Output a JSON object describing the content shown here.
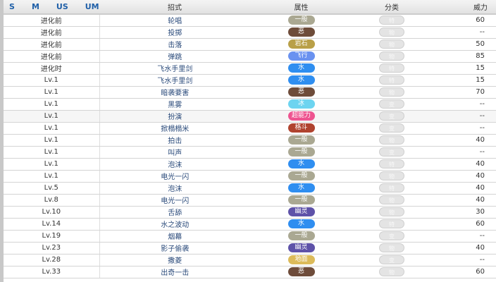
{
  "header": {
    "games": [
      "S",
      "M",
      "US",
      "UM"
    ],
    "move": "招式",
    "type": "属性",
    "category": "分类",
    "power": "威力"
  },
  "type_colors": {
    "一般": "#aaa892",
    "恶": "#6e4c3a",
    "岩石": "#b9a048",
    "飞行": "#6a92f0",
    "水": "#2f8ef0",
    "冰": "#6dd4f0",
    "超能力": "#ee5490",
    "格斗": "#b0432f",
    "幽灵": "#5e52a8",
    "地面": "#dcbb5a"
  },
  "rows": [
    {
      "level": "进化前",
      "move": "轮唱",
      "type": "一般",
      "category": "特",
      "power": "60"
    },
    {
      "level": "进化前",
      "move": "投掷",
      "type": "恶",
      "category": "物",
      "power": "--"
    },
    {
      "level": "进化前",
      "move": "击落",
      "type": "岩石",
      "category": "物",
      "power": "50"
    },
    {
      "level": "进化前",
      "move": "弹跳",
      "type": "飞行",
      "category": "物",
      "power": "85"
    },
    {
      "level": "进化时",
      "move": "飞水手里剑",
      "type": "水",
      "category": "特",
      "power": "15"
    },
    {
      "level": "Lv.1",
      "move": "飞水手里剑",
      "type": "水",
      "category": "特",
      "power": "15"
    },
    {
      "level": "Lv.1",
      "move": "暗袭要害",
      "type": "恶",
      "category": "物",
      "power": "70"
    },
    {
      "level": "Lv.1",
      "move": "黑雾",
      "type": "冰",
      "category": "变",
      "power": "--"
    },
    {
      "level": "Lv.1",
      "move": "扮演",
      "type": "超能力",
      "category": "变",
      "power": "--"
    },
    {
      "level": "Lv.1",
      "move": "掀榻榻米",
      "type": "格斗",
      "category": "变",
      "power": "--"
    },
    {
      "level": "Lv.1",
      "move": "拍击",
      "type": "一般",
      "category": "物",
      "power": "40"
    },
    {
      "level": "Lv.1",
      "move": "叫声",
      "type": "一般",
      "category": "变",
      "power": "--"
    },
    {
      "level": "Lv.1",
      "move": "泡沫",
      "type": "水",
      "category": "特",
      "power": "40"
    },
    {
      "level": "Lv.1",
      "move": "电光一闪",
      "type": "一般",
      "category": "物",
      "power": "40"
    },
    {
      "level": "Lv.5",
      "move": "泡沫",
      "type": "水",
      "category": "特",
      "power": "40"
    },
    {
      "level": "Lv.8",
      "move": "电光一闪",
      "type": "一般",
      "category": "物",
      "power": "40"
    },
    {
      "level": "Lv.10",
      "move": "舌舔",
      "type": "幽灵",
      "category": "物",
      "power": "30"
    },
    {
      "level": "Lv.14",
      "move": "水之波动",
      "type": "水",
      "category": "特",
      "power": "60"
    },
    {
      "level": "Lv.19",
      "move": "烟幕",
      "type": "一般",
      "category": "变",
      "power": "--"
    },
    {
      "level": "Lv.23",
      "move": "影子偷袭",
      "type": "幽灵",
      "category": "物",
      "power": "40"
    },
    {
      "level": "Lv.28",
      "move": "撒菱",
      "type": "地面",
      "category": "变",
      "power": "--"
    },
    {
      "level": "Lv.33",
      "move": "出奇一击",
      "type": "恶",
      "category": "物",
      "power": "60"
    }
  ]
}
